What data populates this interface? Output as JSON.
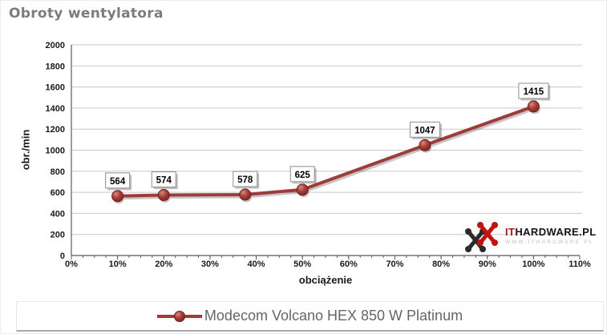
{
  "watermark": {
    "brand_it": "IT",
    "brand_rest": "HARDWARE.PL",
    "sub": "WWW.ITHARDWARE.PL"
  },
  "chart_data": {
    "type": "line",
    "title": "Obroty wentylatora",
    "xlabel": "obciążenie",
    "ylabel": "obr./min",
    "series": [
      {
        "name": "Modecom Volcano HEX 850 W Platinum",
        "x": [
          10,
          20,
          37.6,
          50,
          76.5,
          100
        ],
        "values": [
          564,
          574,
          578,
          625,
          1047,
          1415
        ],
        "data_labels": [
          "564",
          "574",
          "578",
          "625",
          "1047",
          "1415"
        ]
      }
    ],
    "xlim": [
      0,
      110
    ],
    "ylim": [
      0,
      2000
    ],
    "x_tick_values": [
      0,
      10,
      20,
      30,
      40,
      50,
      60,
      70,
      80,
      90,
      100,
      110
    ],
    "x_tick_labels": [
      "0%",
      "10%",
      "20%",
      "30%",
      "40%",
      "50%",
      "60%",
      "70%",
      "80%",
      "90%",
      "100%",
      "110%"
    ],
    "x_minor_tick_step": 2.5,
    "y_tick_values": [
      0,
      200,
      400,
      600,
      800,
      1000,
      1200,
      1400,
      1600,
      1800,
      2000
    ],
    "y_tick_labels": [
      "0",
      "200",
      "400",
      "600",
      "800",
      "1000",
      "1200",
      "1400",
      "1600",
      "1800",
      "2000"
    ],
    "grid": "horizontal",
    "legend_position": "bottom",
    "line_color": "#9E3C3A",
    "marker_stroke": "#6F201F",
    "grid_color": "#C9C9C9",
    "axis_color": "#595959",
    "tick_label_color": "#1A1A1A"
  }
}
